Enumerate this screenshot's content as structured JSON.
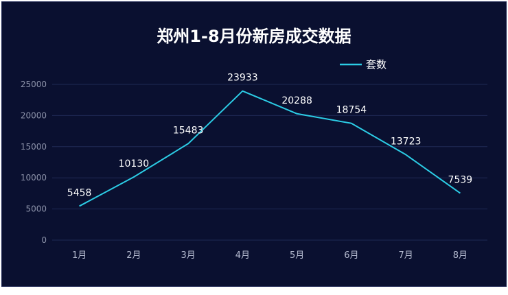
{
  "chart_data": {
    "type": "line",
    "title": "郑州1-8月份新房成交数据",
    "categories": [
      "1月",
      "2月",
      "3月",
      "4月",
      "5月",
      "6月",
      "7月",
      "8月"
    ],
    "series": [
      {
        "name": "套数",
        "values": [
          5458,
          10130,
          15483,
          23933,
          20288,
          18754,
          13723,
          7539
        ]
      }
    ],
    "ylim": [
      0,
      25000
    ],
    "yticks": [
      "0",
      "5000",
      "10000",
      "15000",
      "20000",
      "25000"
    ],
    "grid": true,
    "legend": "top-right",
    "colors": {
      "line": "#2ccde6",
      "background": "#0a1030",
      "grid": "#1f2a55"
    }
  }
}
